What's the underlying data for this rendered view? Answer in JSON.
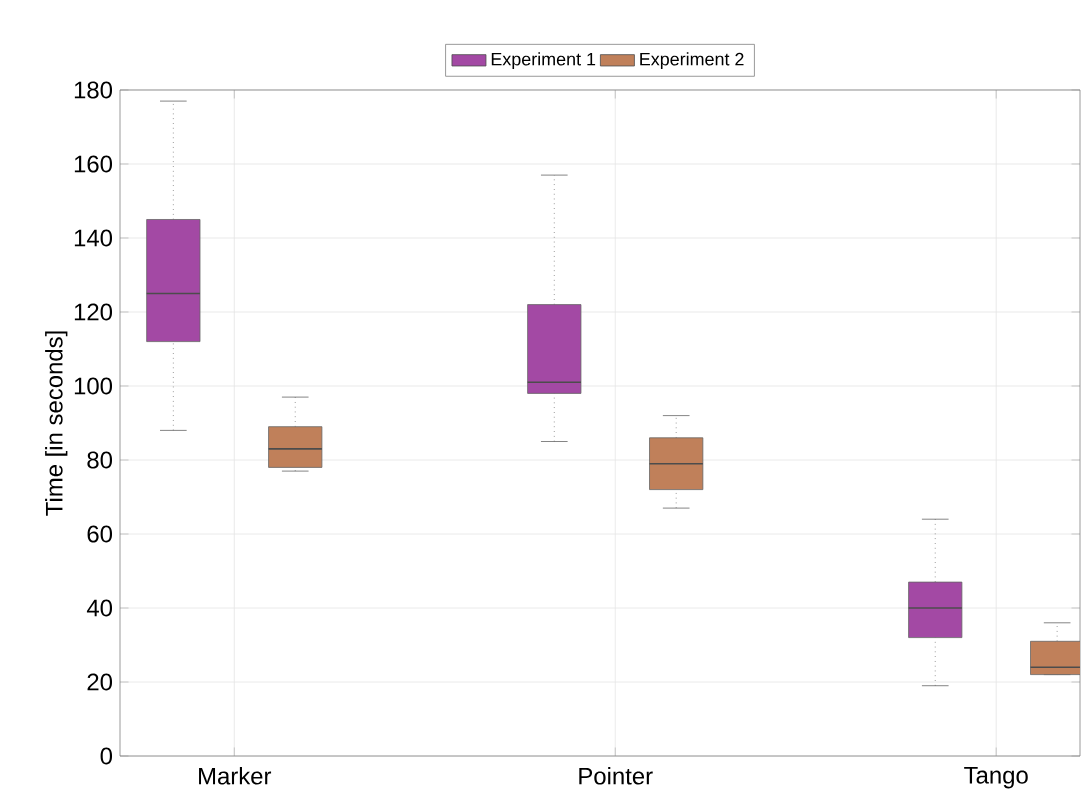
{
  "chart_data": {
    "type": "box",
    "ylabel": "Time [in seconds]",
    "categories": [
      "Marker",
      "Pointer",
      "Tango"
    ],
    "ylim": [
      0,
      180
    ],
    "yticks": [
      0,
      20,
      40,
      60,
      80,
      100,
      120,
      140,
      160,
      180
    ],
    "grid": true,
    "legend": "top",
    "series": [
      {
        "name": "Experiment 1",
        "color": "#a349a4",
        "boxes": [
          {
            "low": 88,
            "q1": 112,
            "median": 125,
            "q3": 145,
            "high": 177
          },
          {
            "low": 85,
            "q1": 98,
            "median": 101,
            "q3": 122,
            "high": 157
          },
          {
            "low": 19,
            "q1": 32,
            "median": 40,
            "q3": 47,
            "high": 64
          }
        ]
      },
      {
        "name": "Experiment 2",
        "color": "#c0805a",
        "boxes": [
          {
            "low": 77,
            "q1": 78,
            "median": 83,
            "q3": 89,
            "high": 97
          },
          {
            "low": 67,
            "q1": 72,
            "median": 79,
            "q3": 86,
            "high": 92
          },
          {
            "low": 22,
            "q1": 22,
            "median": 24,
            "q3": 31,
            "high": 36
          }
        ]
      }
    ]
  }
}
